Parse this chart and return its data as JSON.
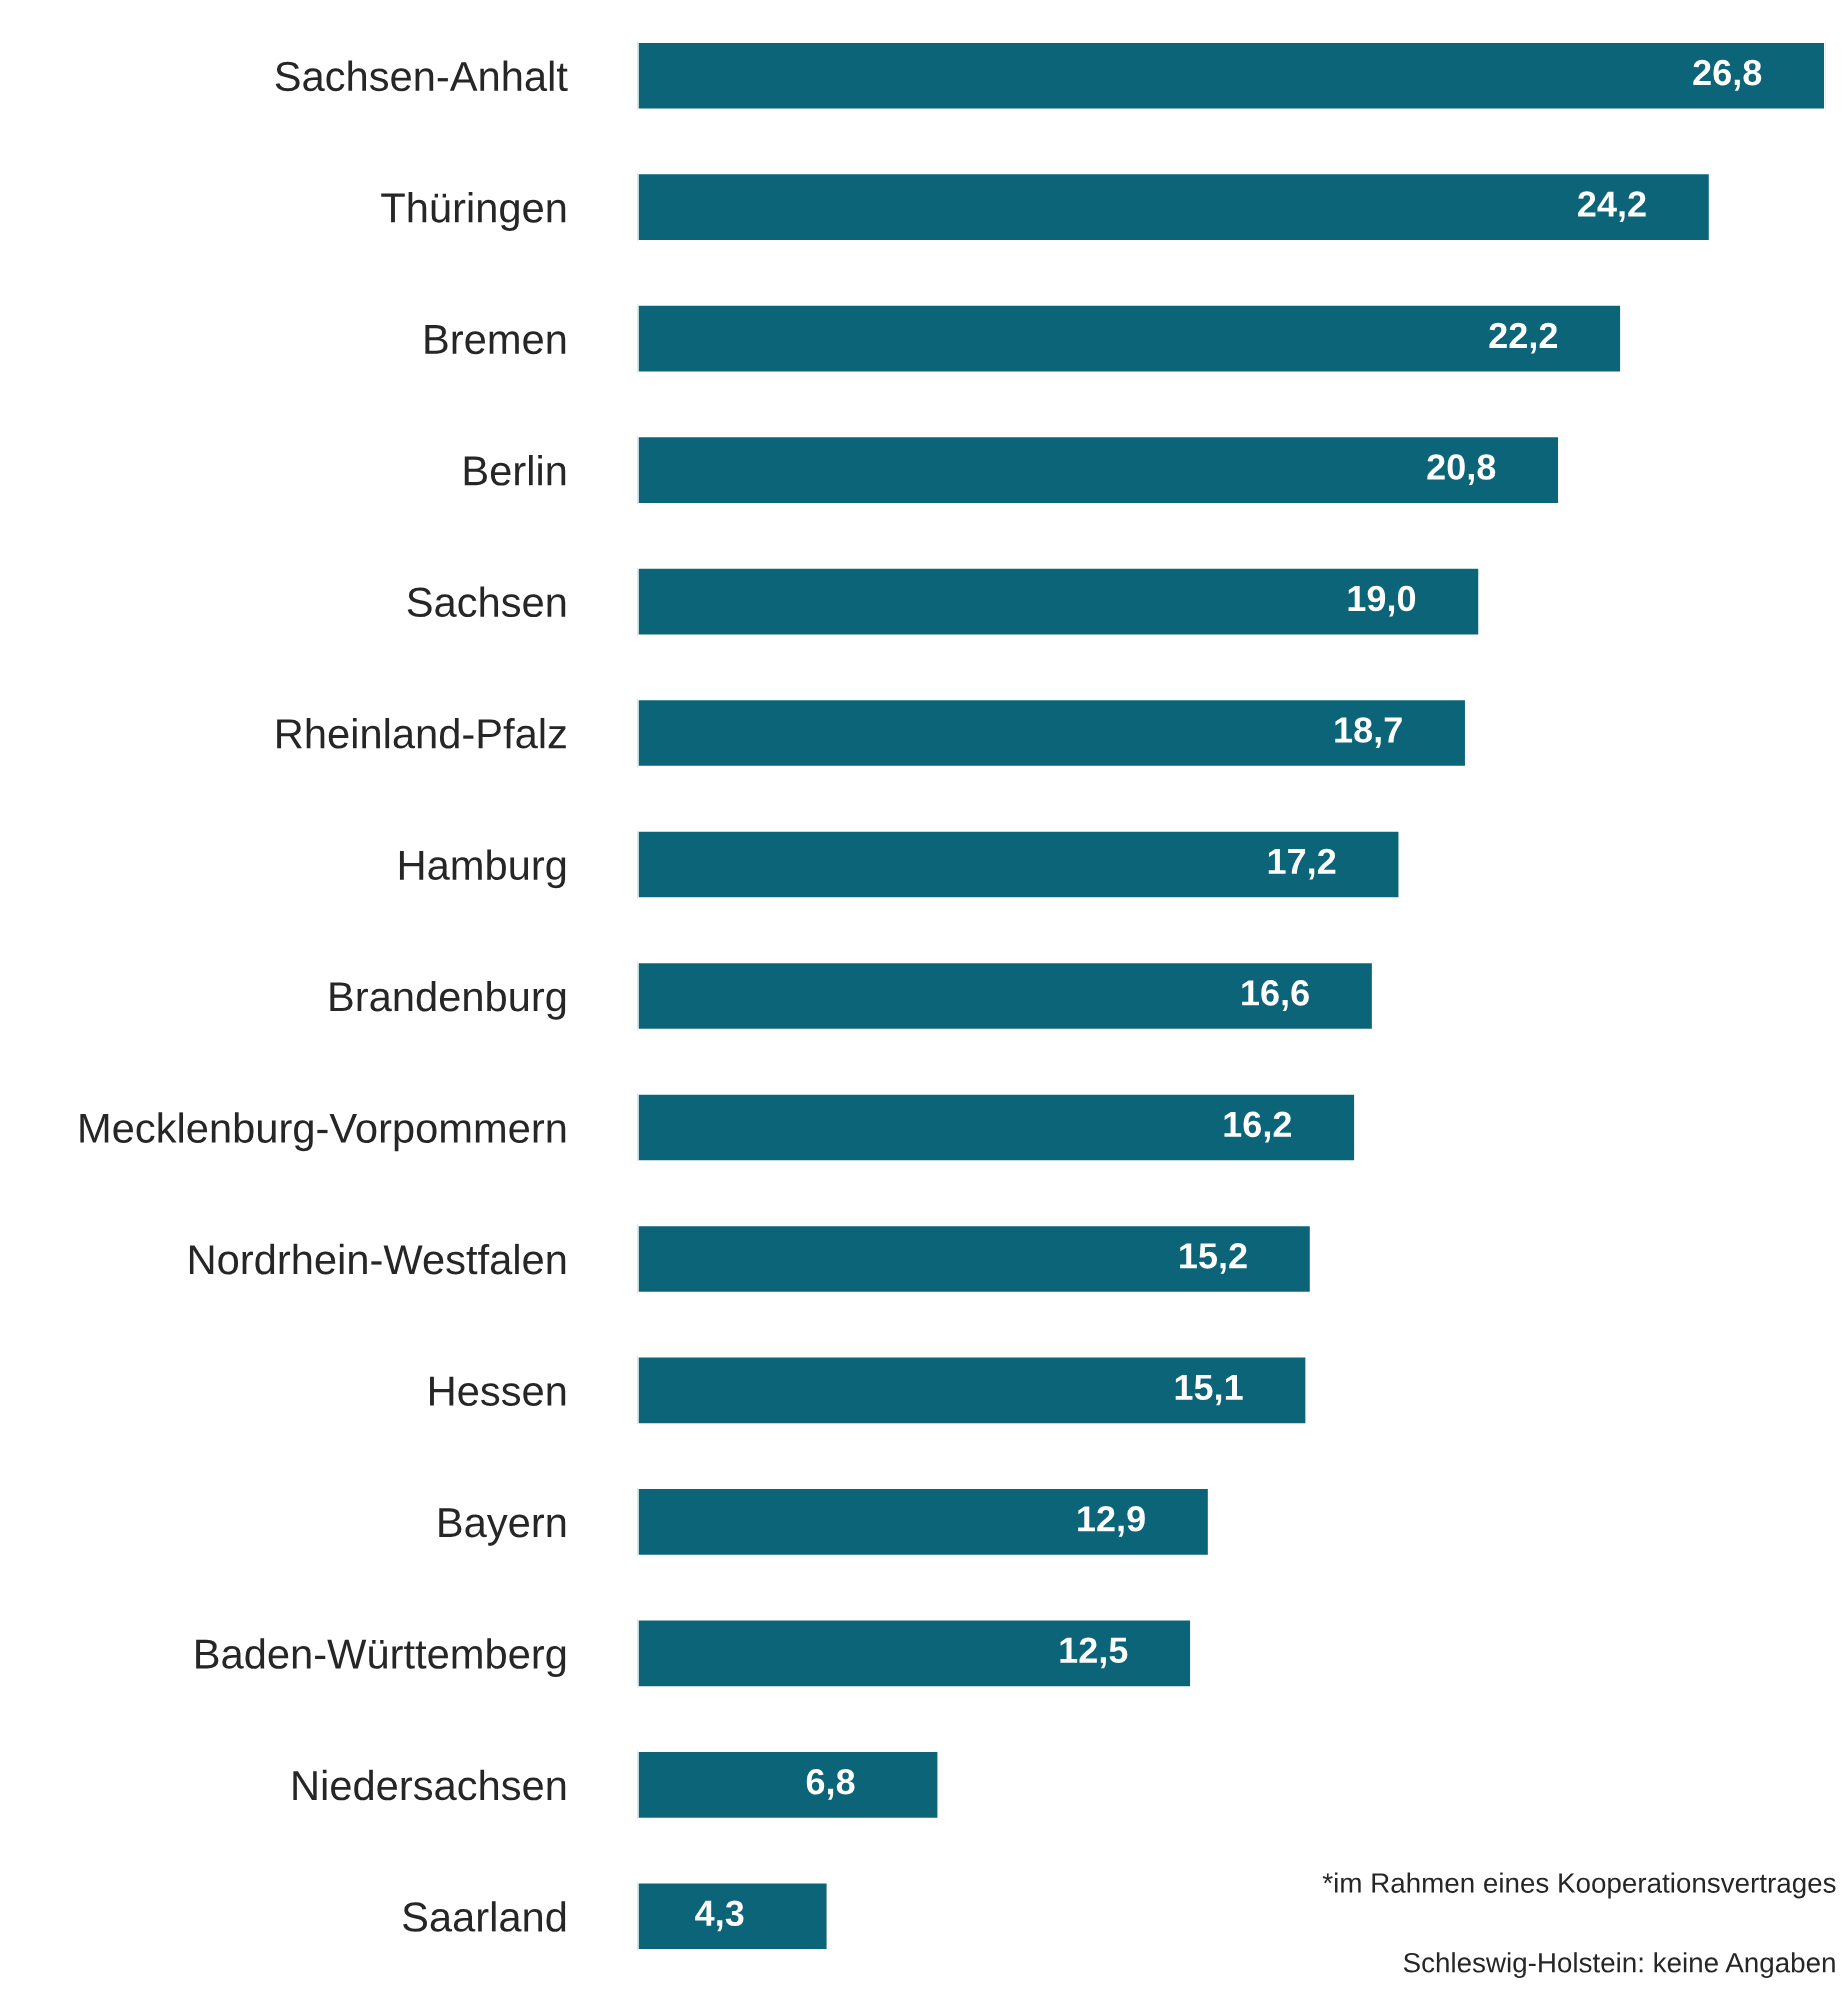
{
  "chart_data": {
    "type": "bar",
    "orientation": "horizontal",
    "categories": [
      "Sachsen-Anhalt",
      "Thüringen",
      "Bremen",
      "Berlin",
      "Sachsen",
      "Rheinland-Pfalz",
      "Hamburg",
      "Brandenburg",
      "Mecklenburg-Vorpommern",
      "Nordrhein-Westfalen",
      "Hessen",
      "Bayern",
      "Baden-Württemberg",
      "Niedersachsen",
      "Saarland"
    ],
    "values": [
      26.8,
      24.2,
      22.2,
      20.8,
      19.0,
      18.7,
      17.2,
      16.6,
      16.2,
      15.2,
      15.1,
      12.9,
      12.5,
      6.8,
      4.3
    ],
    "value_labels": [
      "26,8",
      "24,2",
      "22,2",
      "20,8",
      "19,0",
      "18,7",
      "17,2",
      "16,6",
      "16,2",
      "15,2",
      "15,1",
      "12,9",
      "12,5",
      "6,8",
      "4,3"
    ],
    "color": "#0b6478",
    "annotations": [
      "*im Rahmen eines Kooperationsvertrages",
      "Schleswig-Holstein: keine Angaben"
    ]
  }
}
